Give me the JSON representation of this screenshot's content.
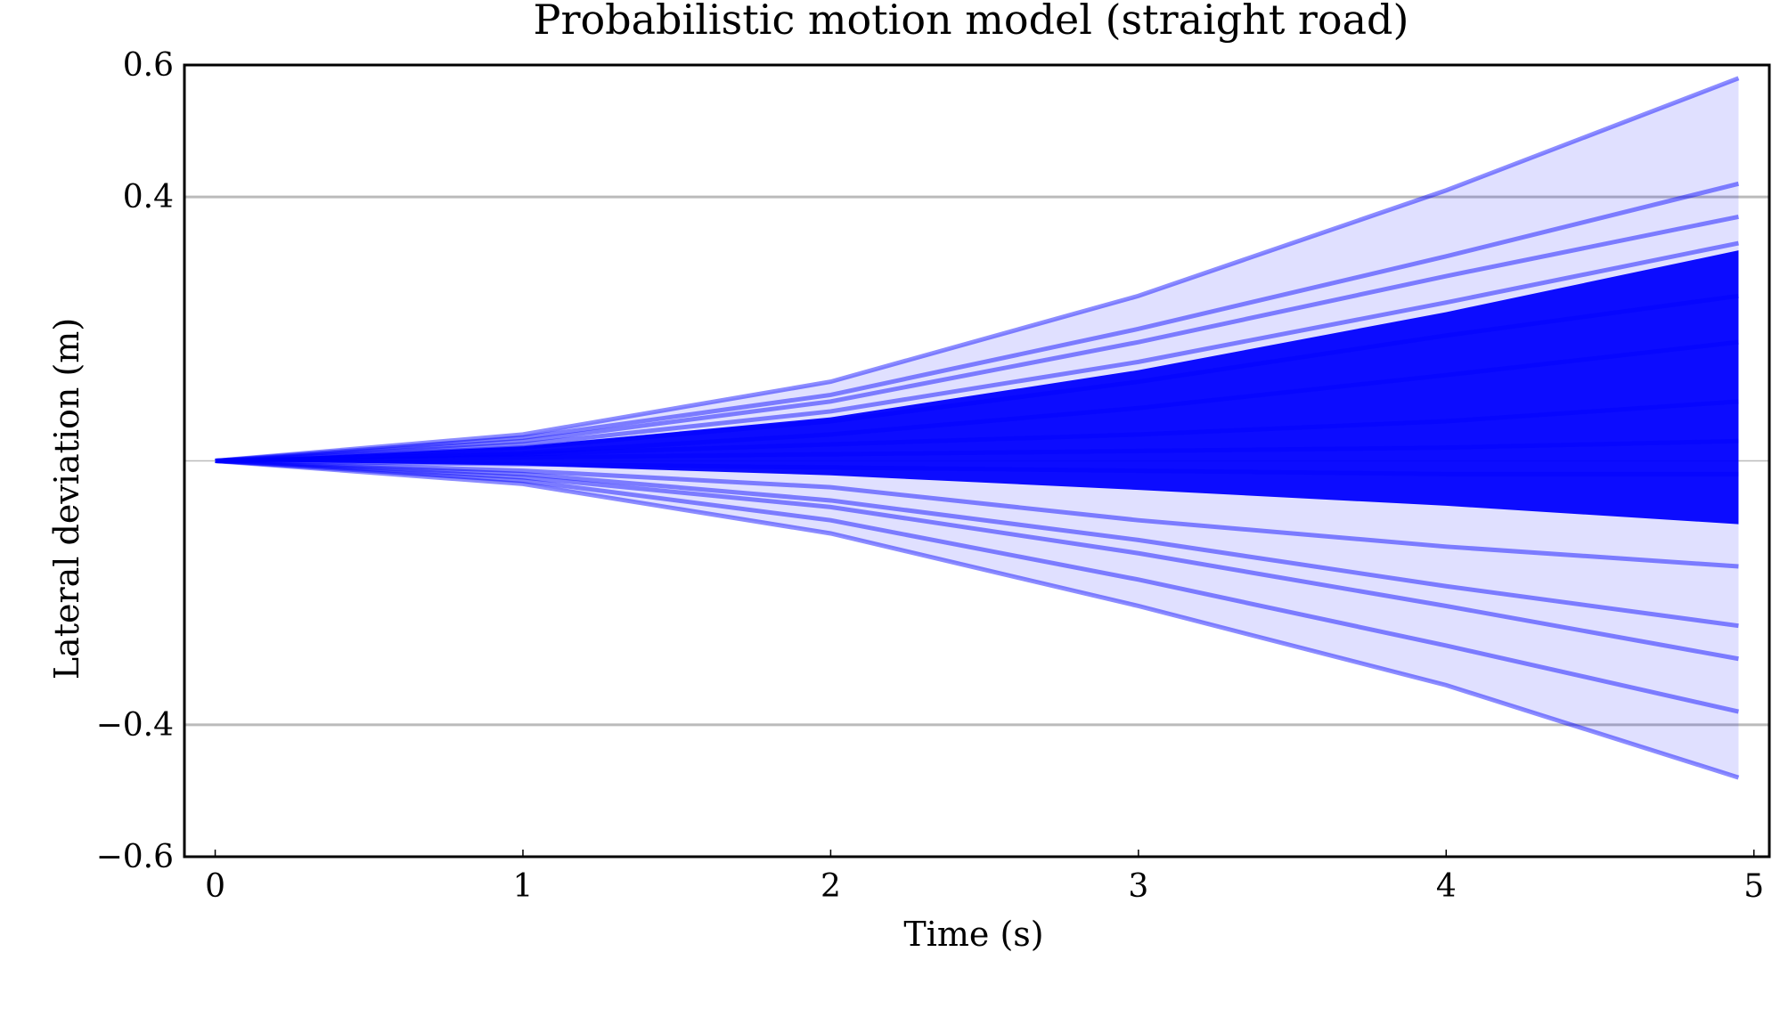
{
  "chart_data": {
    "type": "line",
    "title": "Probabilistic motion model (straight road)",
    "xlabel": "Time (s)",
    "ylabel": "Lateral deviation (m)",
    "xlim": [
      -0.1,
      5.05
    ],
    "ylim": [
      -0.6,
      0.6
    ],
    "x_ticks": [
      0,
      1,
      2,
      3,
      4,
      5
    ],
    "x_tick_labels": [
      "0",
      "1",
      "2",
      "3",
      "4",
      "5"
    ],
    "y_ticks": [
      0.6,
      0.4,
      -0.4,
      -0.6
    ],
    "y_tick_labels": [
      "0.6",
      "0.4",
      "−0.4",
      "−0.6"
    ],
    "gridlines_y": [
      0.4,
      0.0,
      -0.4
    ],
    "grid": "horizontal lines at y = 0.4, 0 and −0.4",
    "color": "#0000ff",
    "grid_color": "#bbbbbb",
    "legend": "none",
    "description_of_marks": "many semi-transparent sampled trajectories starting at (0, 0) and fanning out over time",
    "series": [
      {
        "x": [
          0,
          1,
          2,
          3,
          4,
          4.95
        ],
        "values": [
          0,
          0.012,
          0.04,
          0.08,
          0.13,
          0.18
        ]
      },
      {
        "x": [
          0,
          1,
          2,
          3,
          4,
          4.95
        ],
        "values": [
          0,
          0.02,
          0.06,
          0.12,
          0.19,
          0.25
        ]
      },
      {
        "x": [
          0,
          1,
          2,
          3,
          4,
          4.95
        ],
        "values": [
          0,
          0.03,
          0.09,
          0.18,
          0.28,
          0.37
        ]
      },
      {
        "x": [
          0,
          1,
          2,
          3,
          4,
          4.95
        ],
        "values": [
          0,
          0.035,
          0.1,
          0.2,
          0.31,
          0.42
        ]
      },
      {
        "x": [
          0,
          1,
          2,
          3,
          4,
          4.95
        ],
        "values": [
          0,
          0.04,
          0.12,
          0.25,
          0.41,
          0.58
        ]
      },
      {
        "x": [
          0,
          1,
          2,
          3,
          4,
          4.95
        ],
        "values": [
          0,
          0.025,
          0.075,
          0.15,
          0.24,
          0.33
        ]
      },
      {
        "x": [
          0,
          1,
          2,
          3,
          4,
          4.95
        ],
        "values": [
          0,
          0.01,
          0.025,
          0.04,
          0.06,
          0.09
        ]
      },
      {
        "x": [
          0,
          1,
          2,
          3,
          4,
          4.95
        ],
        "values": [
          0,
          0.005,
          0.01,
          0.015,
          0.02,
          0.03
        ]
      },
      {
        "x": [
          0,
          1,
          2,
          3,
          4,
          4.95
        ],
        "values": [
          0,
          -0.005,
          -0.01,
          -0.015,
          -0.02,
          -0.02
        ]
      },
      {
        "x": [
          0,
          1,
          2,
          3,
          4,
          4.95
        ],
        "values": [
          0,
          -0.015,
          -0.04,
          -0.09,
          -0.13,
          -0.16
        ]
      },
      {
        "x": [
          0,
          1,
          2,
          3,
          4,
          4.95
        ],
        "values": [
          0,
          -0.02,
          -0.06,
          -0.12,
          -0.19,
          -0.25
        ]
      },
      {
        "x": [
          0,
          1,
          2,
          3,
          4,
          4.95
        ],
        "values": [
          0,
          -0.025,
          -0.07,
          -0.14,
          -0.22,
          -0.3
        ]
      },
      {
        "x": [
          0,
          1,
          2,
          3,
          4,
          4.95
        ],
        "values": [
          0,
          -0.03,
          -0.09,
          -0.18,
          -0.28,
          -0.38
        ]
      },
      {
        "x": [
          0,
          1,
          2,
          3,
          4,
          4.95
        ],
        "values": [
          0,
          -0.035,
          -0.11,
          -0.22,
          -0.34,
          -0.48
        ]
      }
    ]
  }
}
